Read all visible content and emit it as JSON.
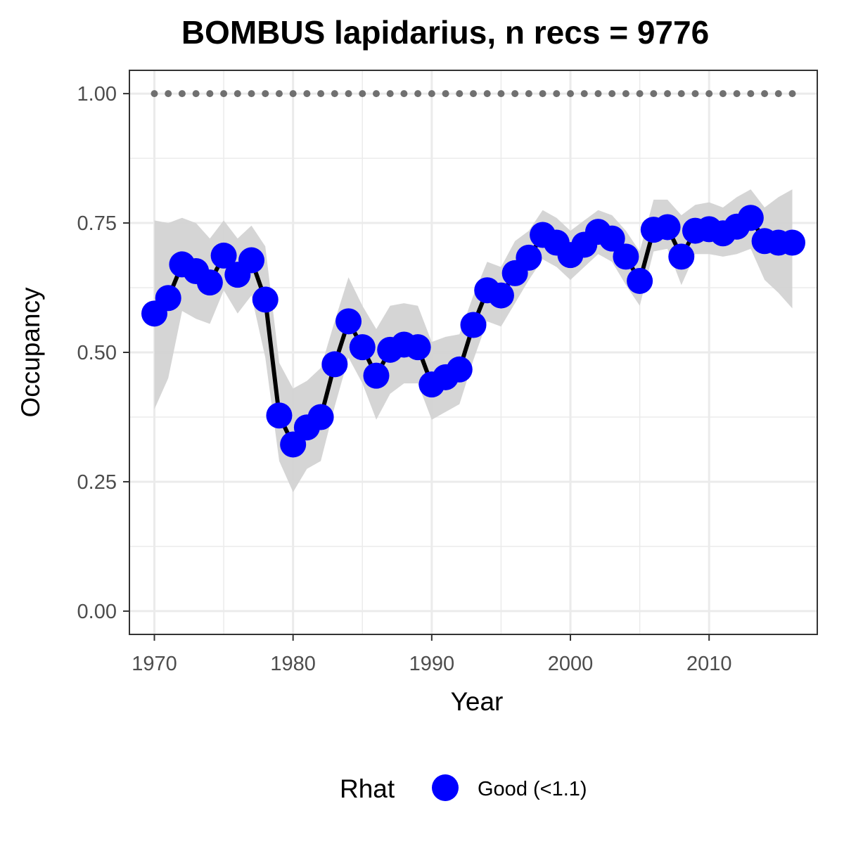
{
  "chart_data": {
    "type": "line",
    "title": "BOMBUS lapidarius, n recs = 9776",
    "xlabel": "Year",
    "ylabel": "Occupancy",
    "xlim": [
      1968.2,
      2017.8
    ],
    "ylim": [
      -0.045,
      1.045
    ],
    "x_ticks": [
      1970,
      1980,
      1990,
      2000,
      2010
    ],
    "y_ticks": [
      0.0,
      0.25,
      0.5,
      0.75,
      1.0
    ],
    "y_tick_labels": [
      "0.00",
      "0.25",
      "0.50",
      "0.75",
      "1.00"
    ],
    "grid": true,
    "legend": {
      "title": "Rhat",
      "position": "bottom",
      "entries": [
        {
          "label": "Good (<1.1)",
          "color": "#0000ff"
        }
      ]
    },
    "colors": {
      "line": "#000000",
      "points": "#0000ff",
      "ribbon": "#d3d3d3",
      "reference_dots": "#707070"
    },
    "x": [
      1970,
      1971,
      1972,
      1973,
      1974,
      1975,
      1976,
      1977,
      1978,
      1979,
      1980,
      1981,
      1982,
      1983,
      1984,
      1985,
      1986,
      1987,
      1988,
      1989,
      1990,
      1991,
      1992,
      1993,
      1994,
      1995,
      1996,
      1997,
      1998,
      1999,
      2000,
      2001,
      2002,
      2003,
      2004,
      2005,
      2006,
      2007,
      2008,
      2009,
      2010,
      2011,
      2012,
      2013,
      2014,
      2015,
      2016
    ],
    "series": [
      {
        "name": "Occupancy",
        "values": [
          0.575,
          0.605,
          0.67,
          0.657,
          0.635,
          0.687,
          0.65,
          0.678,
          0.602,
          0.378,
          0.322,
          0.355,
          0.375,
          0.477,
          0.56,
          0.51,
          0.455,
          0.505,
          0.515,
          0.51,
          0.438,
          0.452,
          0.467,
          0.553,
          0.62,
          0.61,
          0.653,
          0.683,
          0.727,
          0.712,
          0.688,
          0.708,
          0.733,
          0.72,
          0.685,
          0.638,
          0.737,
          0.742,
          0.685,
          0.735,
          0.738,
          0.73,
          0.743,
          0.76,
          0.715,
          0.712,
          0.712
        ],
        "lower": [
          0.39,
          0.45,
          0.58,
          0.565,
          0.555,
          0.62,
          0.575,
          0.61,
          0.49,
          0.29,
          0.23,
          0.275,
          0.29,
          0.395,
          0.49,
          0.44,
          0.37,
          0.42,
          0.44,
          0.44,
          0.37,
          0.385,
          0.4,
          0.485,
          0.56,
          0.55,
          0.595,
          0.64,
          0.68,
          0.665,
          0.64,
          0.665,
          0.69,
          0.675,
          0.63,
          0.59,
          0.695,
          0.7,
          0.63,
          0.69,
          0.69,
          0.685,
          0.69,
          0.7,
          0.64,
          0.615,
          0.585
        ],
        "upper": [
          0.755,
          0.75,
          0.76,
          0.75,
          0.72,
          0.755,
          0.72,
          0.745,
          0.705,
          0.48,
          0.43,
          0.445,
          0.47,
          0.56,
          0.645,
          0.59,
          0.545,
          0.59,
          0.595,
          0.59,
          0.52,
          0.53,
          0.535,
          0.61,
          0.675,
          0.665,
          0.715,
          0.735,
          0.775,
          0.76,
          0.735,
          0.755,
          0.775,
          0.765,
          0.735,
          0.695,
          0.795,
          0.795,
          0.765,
          0.785,
          0.79,
          0.78,
          0.8,
          0.815,
          0.78,
          0.8,
          0.815
        ]
      },
      {
        "name": "Reference",
        "values": [
          1,
          1,
          1,
          1,
          1,
          1,
          1,
          1,
          1,
          1,
          1,
          1,
          1,
          1,
          1,
          1,
          1,
          1,
          1,
          1,
          1,
          1,
          1,
          1,
          1,
          1,
          1,
          1,
          1,
          1,
          1,
          1,
          1,
          1,
          1,
          1,
          1,
          1,
          1,
          1,
          1,
          1,
          1,
          1,
          1,
          1,
          1
        ],
        "reference_x": [
          1970,
          1971,
          1972,
          1973,
          1974,
          1975,
          1976,
          1977,
          1978,
          1979,
          1980,
          1981,
          1982,
          1983,
          1984,
          1985,
          1986,
          1987,
          1988,
          1989,
          1990,
          1991,
          1992,
          1993,
          1994,
          1995,
          1996,
          1997,
          1998,
          1999,
          2000,
          2001,
          2002,
          2003,
          2004,
          2005,
          2006,
          2007,
          2008,
          2009,
          2010,
          2011,
          2012,
          2013,
          2014,
          2015,
          2016
        ]
      }
    ]
  }
}
